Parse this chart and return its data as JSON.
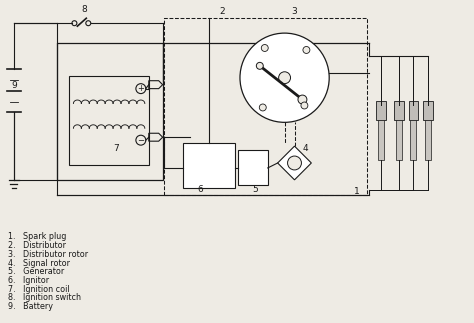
{
  "bg_color": "#eeebe4",
  "line_color": "#1a1a1a",
  "legend_items": [
    "1.   Spark plug",
    "2.   Distributor",
    "3.   Distributor rotor",
    "4.   Signal rotor",
    "5.   Generator",
    "6.   Ignitor",
    "7.   Ignition coil",
    "8.   Ignition switch",
    "9.   Battery"
  ],
  "font_size_legend": 5.8,
  "label_positions": [
    [
      358,
      192,
      "1"
    ],
    [
      222,
      10,
      "2"
    ],
    [
      295,
      10,
      "3"
    ],
    [
      306,
      148,
      "4"
    ],
    [
      255,
      190,
      "5"
    ],
    [
      200,
      190,
      "6"
    ],
    [
      115,
      148,
      "7"
    ],
    [
      83,
      8,
      "8"
    ],
    [
      12,
      85,
      "9"
    ]
  ]
}
